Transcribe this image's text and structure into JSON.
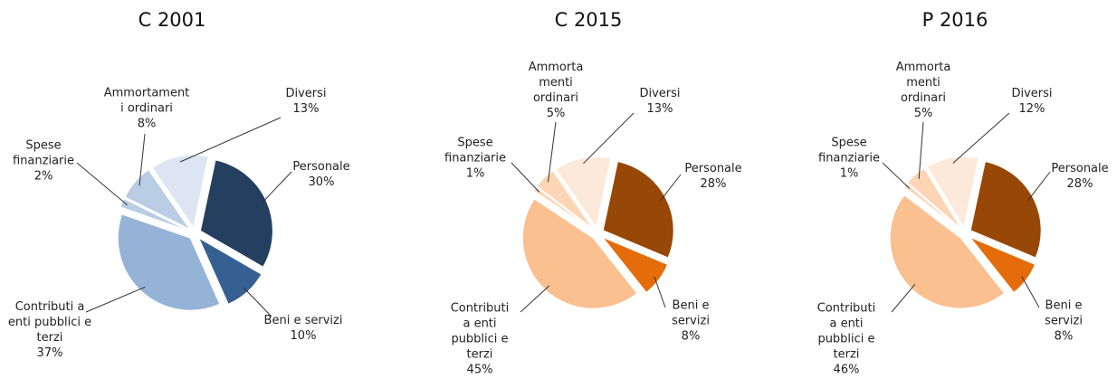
{
  "chart_data": [
    {
      "type": "pie",
      "title": "C 2001",
      "categories": [
        "Personale",
        "Beni e servizi",
        "Contributi a\nenti pubblici e\nterzi",
        "Spese\nfinanziarie",
        "Ammortament\ni ordinari",
        "Diversi"
      ],
      "values": [
        30,
        10,
        37,
        2,
        8,
        13
      ],
      "value_labels": [
        "30%",
        "10%",
        "37%",
        "2%",
        "8%",
        "13%"
      ],
      "colors": [
        "#243f60",
        "#376092",
        "#95b3d7",
        "#b9cde5",
        "#b9cde5",
        "#dce6f2"
      ]
    },
    {
      "type": "pie",
      "title": "C 2015",
      "categories": [
        "Personale",
        "Beni e\nservizi",
        "Contributi\na enti\npubblici e\nterzi",
        "Spese\nfinanziarie",
        "Ammorta\nmenti\nordinari",
        "Diversi"
      ],
      "values": [
        28,
        8,
        45,
        1,
        5,
        13
      ],
      "value_labels": [
        "28%",
        "8%",
        "45%",
        "1%",
        "5%",
        "13%"
      ],
      "colors": [
        "#974706",
        "#e46c0a",
        "#fac090",
        "#fcd5b5",
        "#fcd5b5",
        "#fde9d9"
      ]
    },
    {
      "type": "pie",
      "title": "P 2016",
      "categories": [
        "Personale",
        "Beni e\nservizi",
        "Contributi\na enti\npubblici e\nterzi",
        "Spese\nfinanziarie",
        "Ammorta\nmenti\nordinari",
        "Diversi"
      ],
      "values": [
        28,
        8,
        46,
        1,
        5,
        12
      ],
      "value_labels": [
        "28%",
        "8%",
        "46%",
        "1%",
        "5%",
        "12%"
      ],
      "colors": [
        "#974706",
        "#e46c0a",
        "#fac090",
        "#fcd5b5",
        "#fcd5b5",
        "#fde9d9"
      ]
    }
  ]
}
